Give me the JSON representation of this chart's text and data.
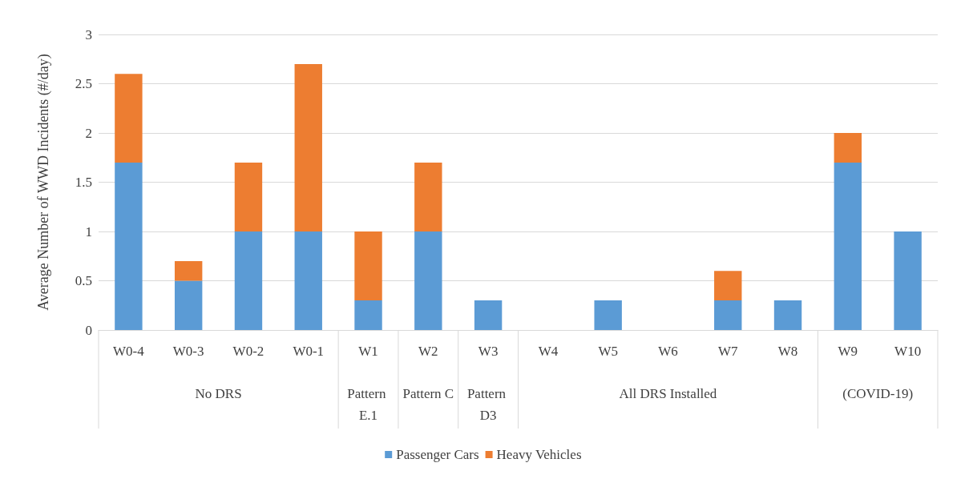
{
  "chart_data": {
    "type": "bar",
    "stacked": true,
    "ylabel": "Average Number of WWD Incidents (#/day)",
    "categories": [
      "W0-4",
      "W0-3",
      "W0-2",
      "W0-1",
      "W1",
      "W2",
      "W3",
      "W4",
      "W5",
      "W6",
      "W7",
      "W8",
      "W9",
      "W10"
    ],
    "series": [
      {
        "name": "Passenger Cars",
        "color": "#5b9bd5",
        "values": [
          1.7,
          0.5,
          1.0,
          1.0,
          0.3,
          1.0,
          0.3,
          0,
          0.3,
          0,
          0.3,
          0.3,
          1.7,
          1.0
        ]
      },
      {
        "name": "Heavy Vehicles",
        "color": "#ed7d31",
        "values": [
          0.9,
          0.2,
          0.7,
          1.7,
          0.7,
          0.7,
          0,
          0,
          0,
          0,
          0.3,
          0,
          0.3,
          0
        ]
      }
    ],
    "annotations": [
      "No DRS",
      "Pattern E.1",
      "Pattern C",
      "Pattern D3",
      "All DRS Installed",
      "(COVID-19)"
    ],
    "ylim": [
      0,
      3
    ],
    "yticks": [
      0,
      0.5,
      1,
      1.5,
      2,
      2.5,
      3
    ],
    "grid": "y",
    "legend": "bottom"
  }
}
